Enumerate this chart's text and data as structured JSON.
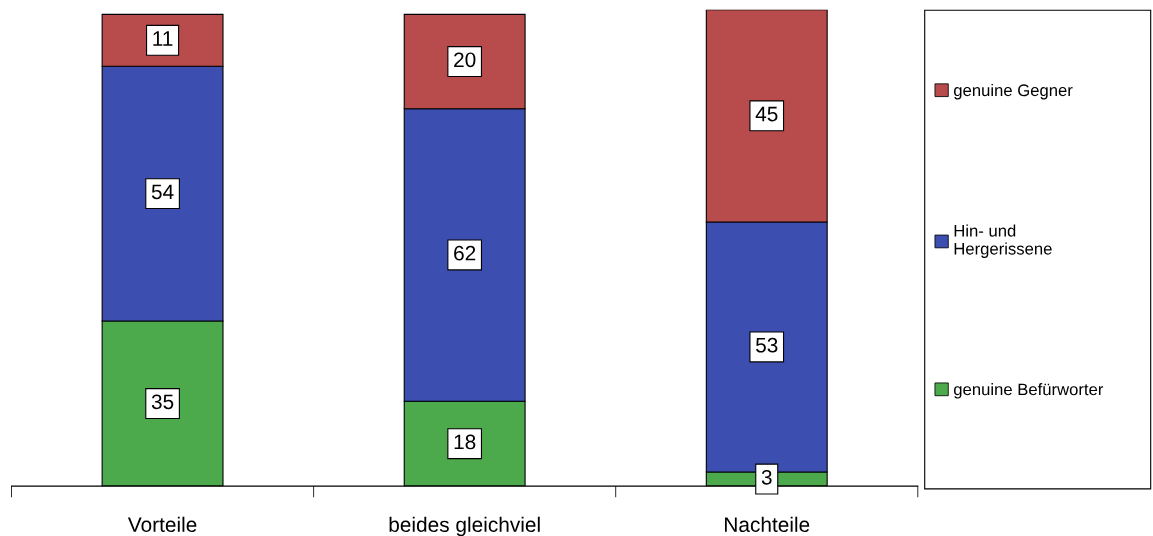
{
  "chart_data": {
    "type": "bar",
    "stacked": true,
    "categories": [
      "Vorteile",
      "beides gleichviel",
      "Nachteile"
    ],
    "series": [
      {
        "name": "genuine Befürworter",
        "color": "#4caa4c",
        "values": [
          35,
          18,
          3
        ]
      },
      {
        "name": "Hin- und\nHergerissene",
        "color": "#3c4fb0",
        "values": [
          54,
          62,
          53
        ]
      },
      {
        "name": "genuine Gegner",
        "color": "#b84c4c",
        "values": [
          11,
          20,
          45
        ]
      }
    ],
    "data_labels": true,
    "legend": "right",
    "grid": false
  }
}
